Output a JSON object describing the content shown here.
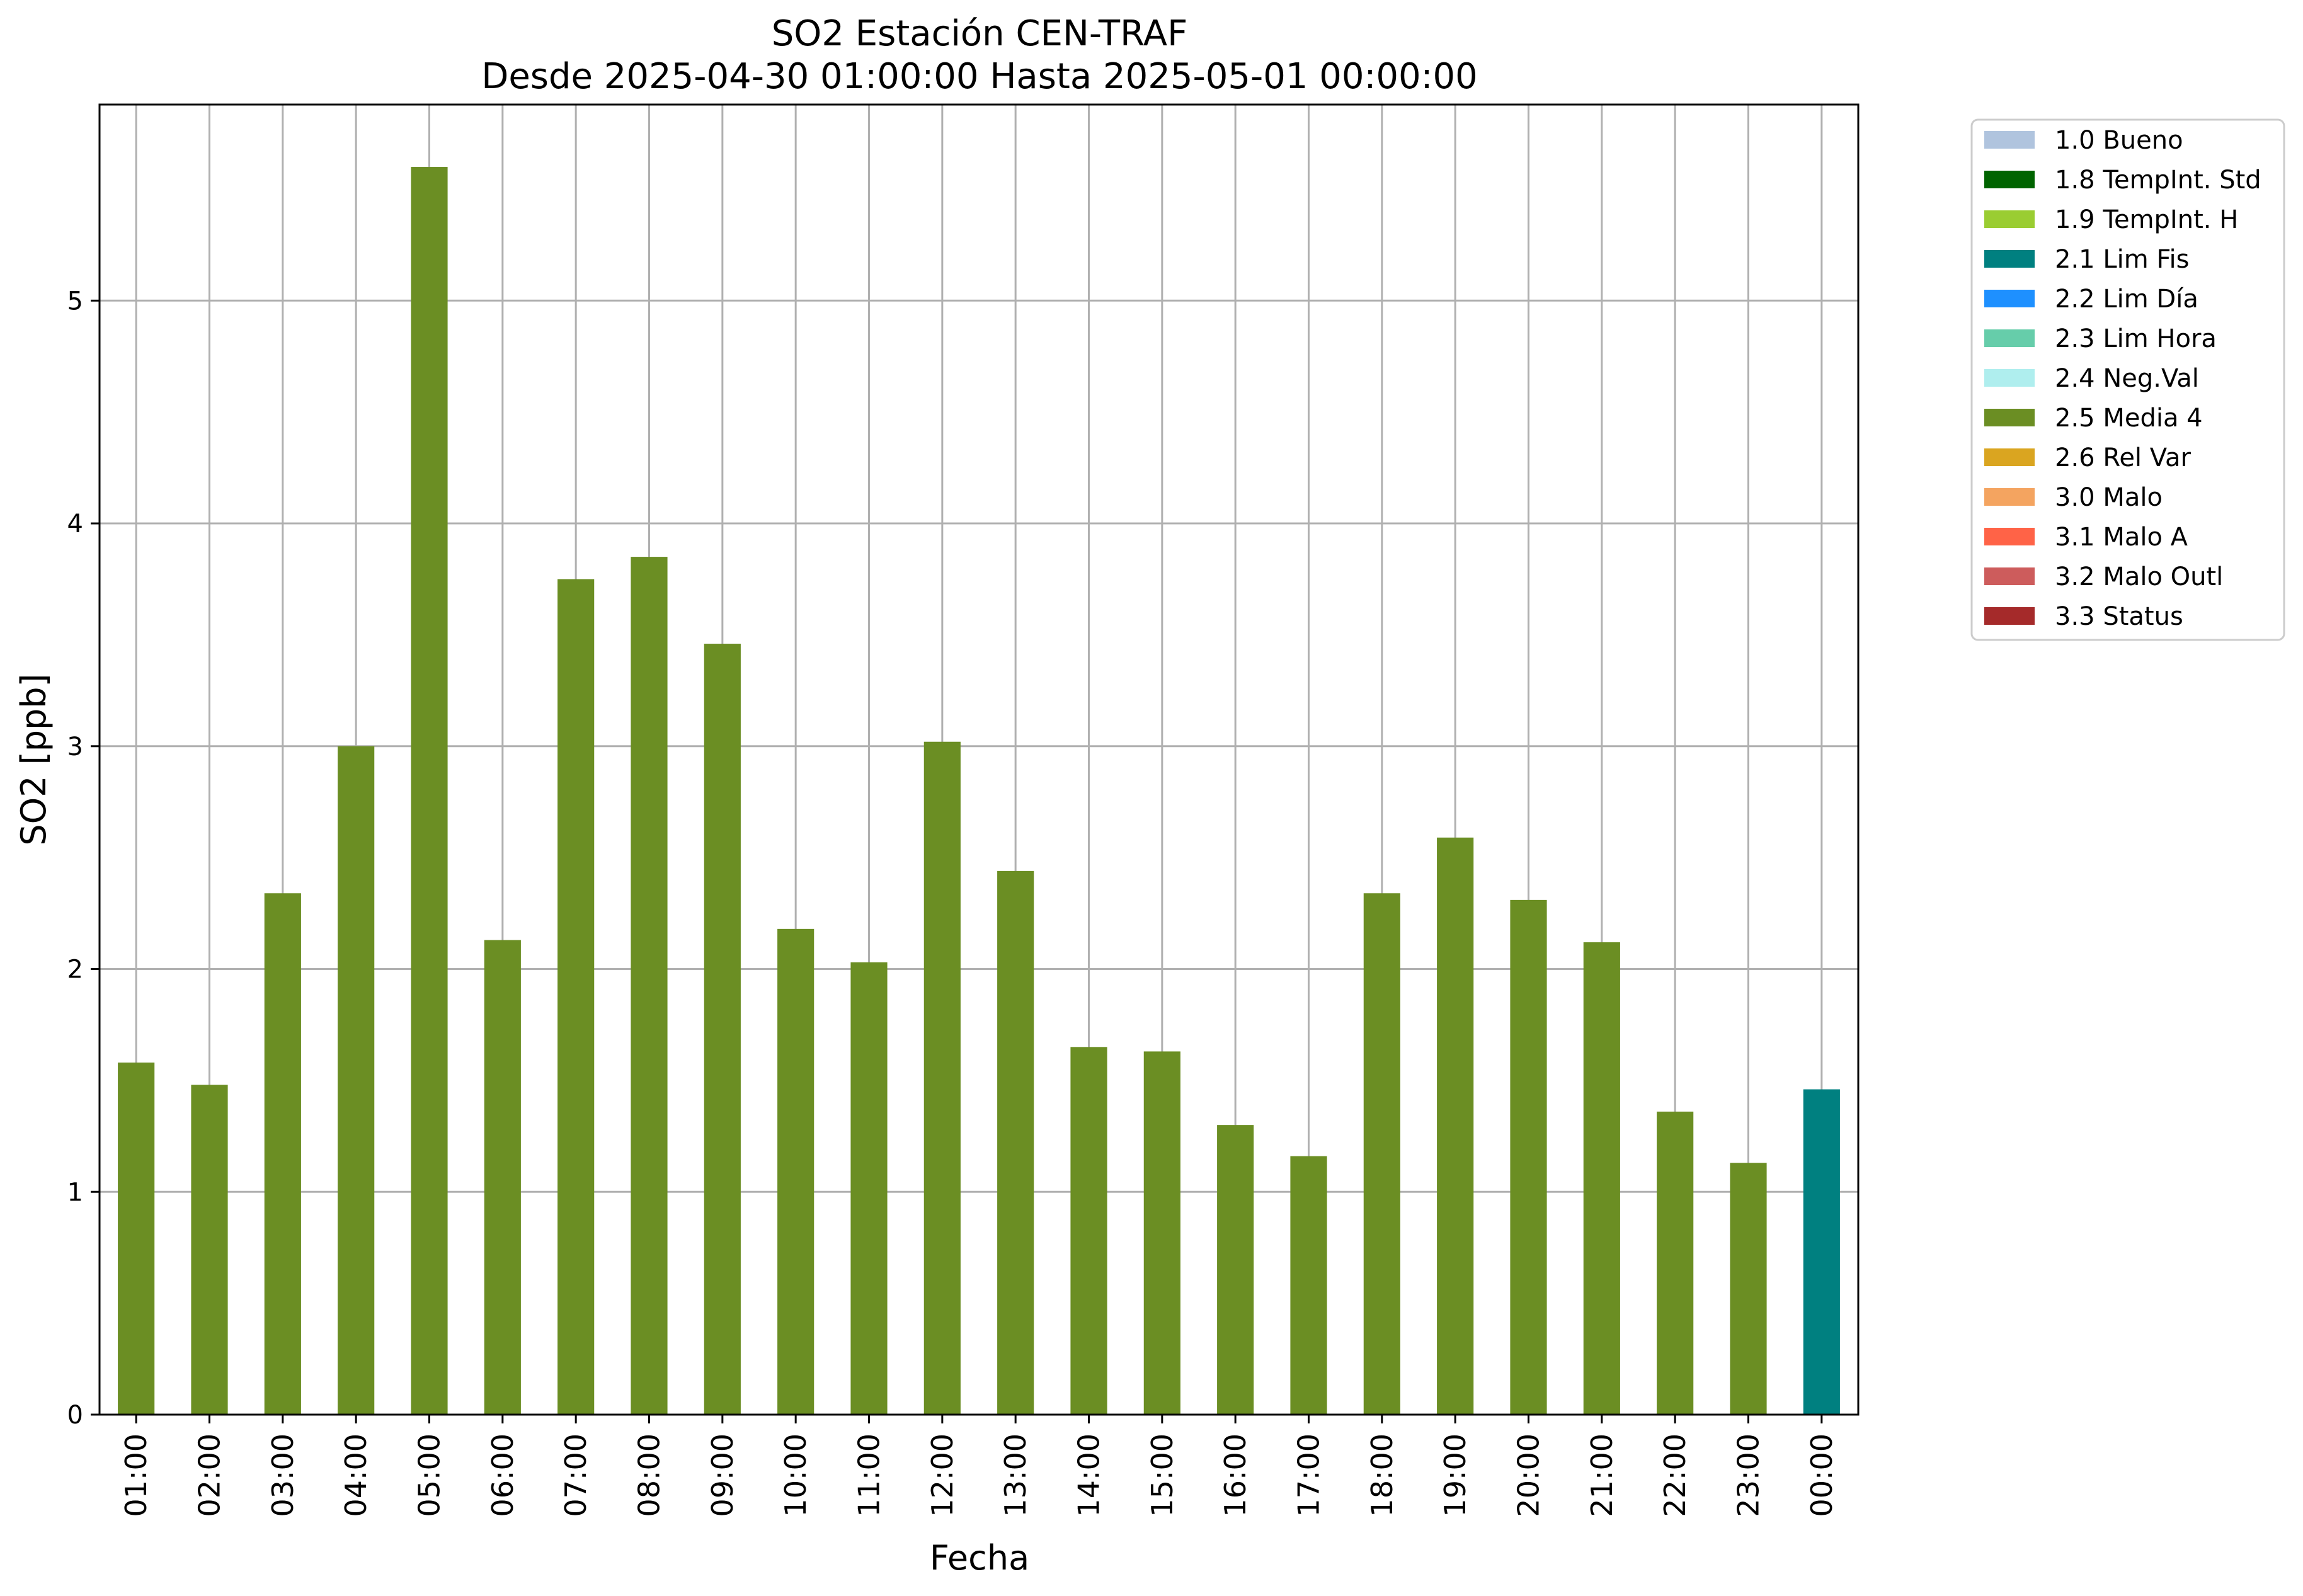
{
  "chart_data": {
    "type": "bar",
    "title": "SO2 Estación CEN-TRAF",
    "subtitle": "Desde 2025-04-30 01:00:00 Hasta 2025-05-01 00:00:00",
    "xlabel": "Fecha",
    "ylabel": "SO2 [ppb]",
    "ylim": [
      0,
      5.88
    ],
    "yticks": [
      "0",
      "1",
      "2",
      "3",
      "4",
      "5"
    ],
    "grid": true,
    "legend_position": "outside-top-right",
    "categories": [
      "01:00",
      "02:00",
      "03:00",
      "04:00",
      "05:00",
      "06:00",
      "07:00",
      "08:00",
      "09:00",
      "10:00",
      "11:00",
      "12:00",
      "13:00",
      "14:00",
      "15:00",
      "16:00",
      "17:00",
      "18:00",
      "19:00",
      "20:00",
      "21:00",
      "22:00",
      "23:00",
      "00:00"
    ],
    "values": [
      1.58,
      1.48,
      2.34,
      3.0,
      5.6,
      2.13,
      3.75,
      3.85,
      3.46,
      2.18,
      2.03,
      3.02,
      2.44,
      1.65,
      1.63,
      1.3,
      1.16,
      2.34,
      2.59,
      2.31,
      2.12,
      1.36,
      1.13,
      1.46
    ],
    "flags": [
      "2.5 Media 4",
      "2.5 Media 4",
      "2.5 Media 4",
      "2.5 Media 4",
      "2.5 Media 4",
      "2.5 Media 4",
      "2.5 Media 4",
      "2.5 Media 4",
      "2.5 Media 4",
      "2.5 Media 4",
      "2.5 Media 4",
      "2.5 Media 4",
      "2.5 Media 4",
      "2.5 Media 4",
      "2.5 Media 4",
      "2.5 Media 4",
      "2.5 Media 4",
      "2.5 Media 4",
      "2.5 Media 4",
      "2.5 Media 4",
      "2.5 Media 4",
      "2.5 Media 4",
      "2.5 Media 4",
      "2.1 Lim Fis"
    ],
    "legend": [
      {
        "label": "1.0 Bueno",
        "color": "#b0c4de"
      },
      {
        "label": "1.8 TempInt. Std",
        "color": "#006400"
      },
      {
        "label": "1.9 TempInt. H",
        "color": "#9acd32"
      },
      {
        "label": "2.1 Lim Fis",
        "color": "#008080"
      },
      {
        "label": "2.2 Lim Día",
        "color": "#1e90ff"
      },
      {
        "label": "2.3 Lim Hora",
        "color": "#66cdaa"
      },
      {
        "label": "2.4 Neg.Val",
        "color": "#afeeee"
      },
      {
        "label": "2.5 Media 4",
        "color": "#6b8e23"
      },
      {
        "label": "2.6 Rel Var",
        "color": "#daa520"
      },
      {
        "label": "3.0 Malo",
        "color": "#f4a460"
      },
      {
        "label": "3.1 Malo A",
        "color": "#ff6347"
      },
      {
        "label": "3.2 Malo Outl",
        "color": "#cd5c5c"
      },
      {
        "label": "3.3 Status",
        "color": "#a52a2a"
      }
    ]
  }
}
